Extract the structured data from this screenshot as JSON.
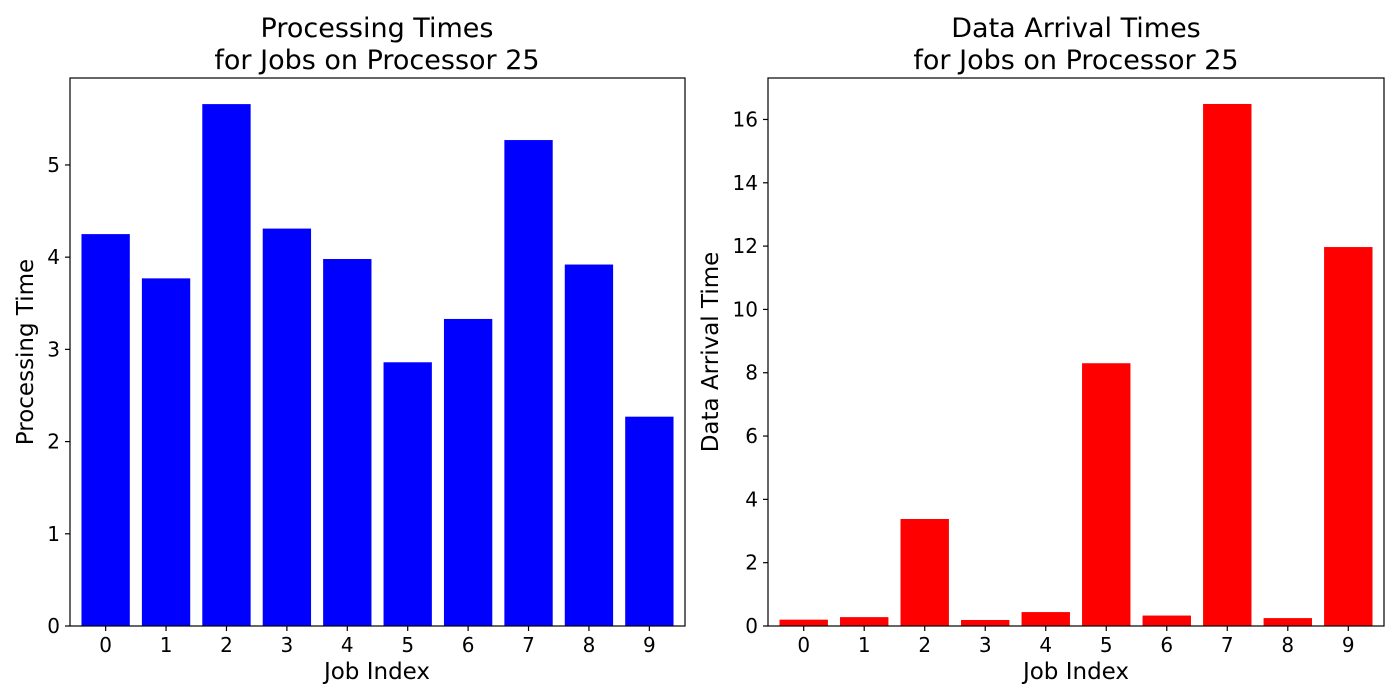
{
  "chart_data": [
    {
      "type": "bar",
      "title_line1": "Processing Times",
      "title_line2": "for Jobs on Processor 25",
      "xlabel": "Job Index",
      "ylabel": "Processing Time",
      "categories": [
        "0",
        "1",
        "2",
        "3",
        "4",
        "5",
        "6",
        "7",
        "8",
        "9"
      ],
      "values": [
        4.25,
        3.77,
        5.66,
        4.31,
        3.98,
        2.86,
        3.33,
        5.27,
        3.92,
        2.27
      ],
      "ylim": [
        0,
        5.943
      ],
      "yticks": [
        0,
        1,
        2,
        3,
        4,
        5
      ],
      "color": "#0000ff",
      "grid": false
    },
    {
      "type": "bar",
      "title_line1": "Data Arrival Times",
      "title_line2": "for Jobs on Processor 25",
      "xlabel": "Job Index",
      "ylabel": "Data Arrival Time",
      "categories": [
        "0",
        "1",
        "2",
        "3",
        "4",
        "5",
        "6",
        "7",
        "8",
        "9"
      ],
      "values": [
        0.2,
        0.28,
        3.38,
        0.19,
        0.44,
        8.3,
        0.33,
        16.49,
        0.25,
        11.97
      ],
      "ylim": [
        0,
        17.31
      ],
      "yticks": [
        0,
        2,
        4,
        6,
        8,
        10,
        12,
        14,
        16
      ],
      "color": "#ff0000",
      "grid": false
    }
  ]
}
